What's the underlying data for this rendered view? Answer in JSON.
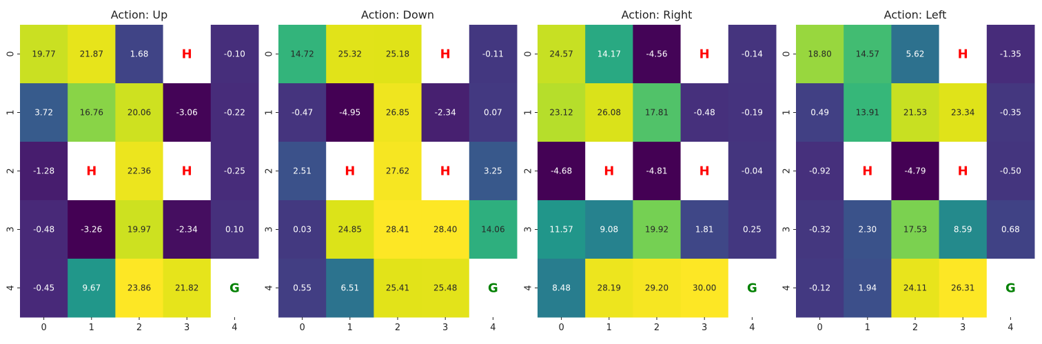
{
  "chart_data": [
    {
      "type": "heatmap",
      "title": "Action: Up",
      "x_ticks": [
        "0",
        "1",
        "2",
        "3",
        "4"
      ],
      "y_ticks": [
        "0",
        "1",
        "2",
        "3",
        "4"
      ],
      "cells": [
        [
          "19.77",
          "21.87",
          "1.68",
          "H",
          "-0.10"
        ],
        [
          "3.72",
          "16.76",
          "20.06",
          "-3.06",
          "-0.22"
        ],
        [
          "-1.28",
          "H",
          "22.36",
          "H",
          "-0.25"
        ],
        [
          "-0.48",
          "-3.26",
          "19.97",
          "-2.34",
          "0.10"
        ],
        [
          "-0.45",
          "9.67",
          "23.86",
          "21.82",
          "G"
        ]
      ]
    },
    {
      "type": "heatmap",
      "title": "Action: Down",
      "x_ticks": [
        "0",
        "1",
        "2",
        "3",
        "4"
      ],
      "y_ticks": [
        "0",
        "1",
        "2",
        "3",
        "4"
      ],
      "cells": [
        [
          "14.72",
          "25.32",
          "25.18",
          "H",
          "-0.11"
        ],
        [
          "-0.47",
          "-4.95",
          "26.85",
          "-2.34",
          "0.07"
        ],
        [
          "2.51",
          "H",
          "27.62",
          "H",
          "3.25"
        ],
        [
          "0.03",
          "24.85",
          "28.41",
          "28.40",
          "14.06"
        ],
        [
          "0.55",
          "6.51",
          "25.41",
          "25.48",
          "G"
        ]
      ]
    },
    {
      "type": "heatmap",
      "title": "Action: Right",
      "x_ticks": [
        "0",
        "1",
        "2",
        "3",
        "4"
      ],
      "y_ticks": [
        "0",
        "1",
        "2",
        "3",
        "4"
      ],
      "cells": [
        [
          "24.57",
          "14.17",
          "-4.56",
          "H",
          "-0.14"
        ],
        [
          "23.12",
          "26.08",
          "17.81",
          "-0.48",
          "-0.19"
        ],
        [
          "-4.68",
          "H",
          "-4.81",
          "H",
          "-0.04"
        ],
        [
          "11.57",
          "9.08",
          "19.92",
          "1.81",
          "0.25"
        ],
        [
          "8.48",
          "28.19",
          "29.20",
          "30.00",
          "G"
        ]
      ]
    },
    {
      "type": "heatmap",
      "title": "Action: Left",
      "x_ticks": [
        "0",
        "1",
        "2",
        "3",
        "4"
      ],
      "y_ticks": [
        "0",
        "1",
        "2",
        "3",
        "4"
      ],
      "cells": [
        [
          "18.80",
          "14.57",
          "5.62",
          "H",
          "-1.35"
        ],
        [
          "0.49",
          "13.91",
          "21.53",
          "23.34",
          "-0.35"
        ],
        [
          "-0.92",
          "H",
          "-4.79",
          "H",
          "-0.50"
        ],
        [
          "-0.32",
          "2.30",
          "17.53",
          "8.59",
          "0.68"
        ],
        [
          "-0.12",
          "1.94",
          "24.11",
          "26.31",
          "G"
        ]
      ]
    }
  ],
  "colormap": "viridis",
  "colors": {
    "hole_marker": "#ff0000",
    "goal_marker": "#008000",
    "special_cell_bg": "#ffffff"
  }
}
